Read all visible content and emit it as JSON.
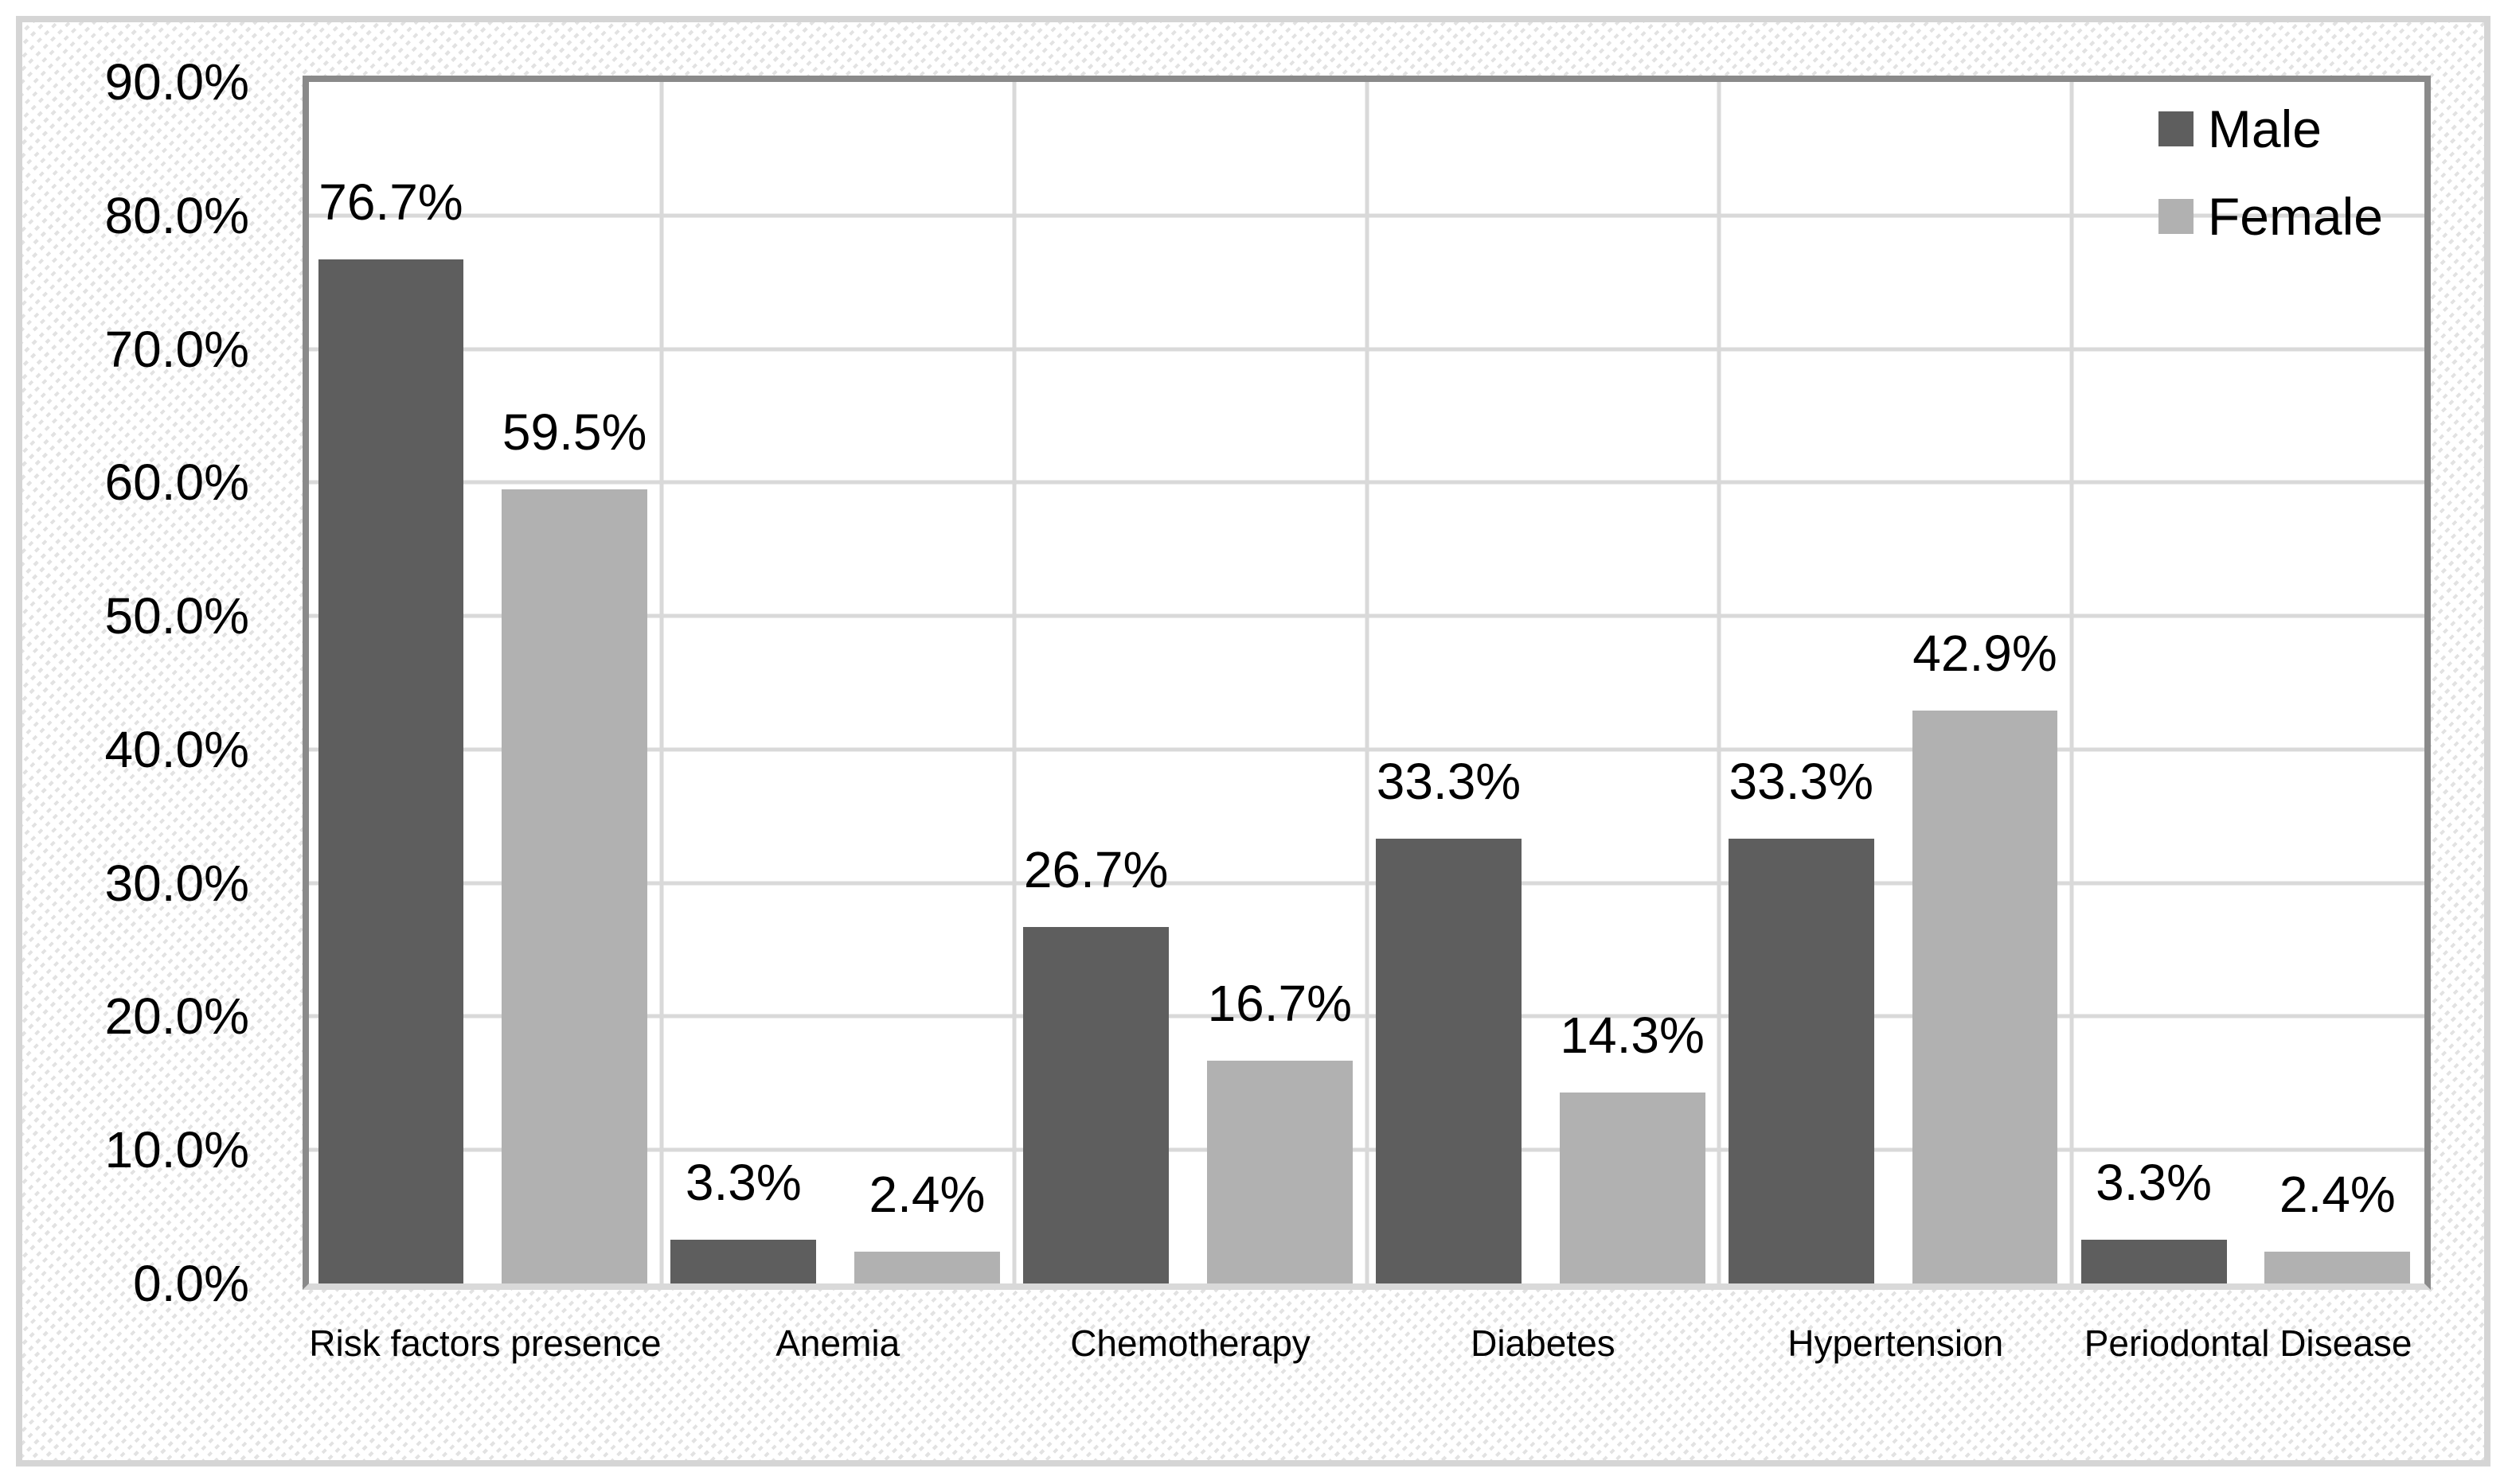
{
  "chart_data": {
    "type": "bar",
    "title": "",
    "xlabel": "",
    "ylabel": "",
    "categories": [
      "Risk factors presence",
      "Anemia",
      "Chemotherapy",
      "Diabetes",
      "Hypertension",
      "Periodontal Disease"
    ],
    "series": [
      {
        "name": "Male",
        "color": "#5e5e5e",
        "values": [
          76.7,
          3.3,
          26.7,
          33.3,
          33.3,
          3.3
        ],
        "labels": [
          "76.7%",
          "3.3%",
          "26.7%",
          "33.3%",
          "33.3%",
          "3.3%"
        ]
      },
      {
        "name": "Female",
        "color": "#b1b1b1",
        "values": [
          59.5,
          2.4,
          16.7,
          14.3,
          42.9,
          2.4
        ],
        "labels": [
          "59.5%",
          "2.4%",
          "16.7%",
          "14.3%",
          "42.9%",
          "2.4%"
        ]
      }
    ],
    "ylim": [
      0,
      90
    ],
    "yticks": {
      "values": [
        0,
        10,
        20,
        30,
        40,
        50,
        60,
        70,
        80,
        90
      ],
      "labels": [
        "0.0%",
        "10.0%",
        "20.0%",
        "30.0%",
        "40.0%",
        "50.0%",
        "60.0%",
        "70.0%",
        "80.0%",
        "90.0%"
      ]
    },
    "grid": true,
    "legend_position": "top-right",
    "colors": {
      "gridline": "#d9d9d9",
      "plot_border": "#8a8a8a",
      "axis_line": "#d9d9d9",
      "frame_border": "#d5d5d5",
      "label_text": "#000000"
    }
  }
}
